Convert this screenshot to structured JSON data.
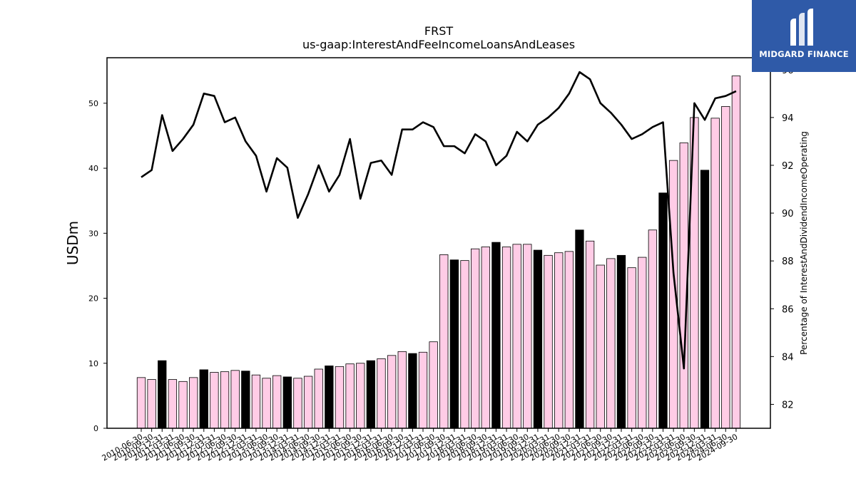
{
  "logo": {
    "name": "MIDGARD FINANCE"
  },
  "colors": {
    "bar_pink": "#ffcce6",
    "bar_black": "#000000",
    "line": "#000000",
    "logo_bg": "#2f5aa8"
  },
  "chart_data": {
    "type": "bar+line",
    "title": "FRST",
    "subtitle": "us-gaap:InterestAndFeeIncomeLoansAndLeases",
    "ylabel": "USDm",
    "y2label": "Percentage of InterestAndDividendIncomeOperating",
    "ylim": [
      0,
      57
    ],
    "y2lim": [
      81.0,
      96.5
    ],
    "yticks": [
      0,
      10,
      20,
      30,
      40,
      50
    ],
    "y2ticks": [
      82,
      84,
      86,
      88,
      90,
      92,
      94,
      96
    ],
    "categories": [
      "2010-06-30",
      "2010-09-30",
      "2010-12-31",
      "2011-03-31",
      "2011-06-30",
      "2011-09-30",
      "2011-12-31",
      "2012-03-31",
      "2012-06-30",
      "2012-09-30",
      "2012-12-31",
      "2013-03-31",
      "2013-06-30",
      "2013-09-30",
      "2013-12-31",
      "2014-03-31",
      "2014-06-30",
      "2014-09-30",
      "2014-12-31",
      "2015-03-31",
      "2015-06-30",
      "2015-09-30",
      "2015-12-31",
      "2016-03-31",
      "2016-06-30",
      "2016-09-30",
      "2016-12-31",
      "2017-03-31",
      "2017-06-30",
      "2017-09-30",
      "2017-12-31",
      "2018-03-31",
      "2018-06-30",
      "2018-09-30",
      "2018-12-31",
      "2019-03-31",
      "2019-06-30",
      "2019-09-30",
      "2019-12-31",
      "2020-03-31",
      "2020-06-30",
      "2020-09-30",
      "2020-12-31",
      "2021-03-31",
      "2021-06-30",
      "2021-09-30",
      "2021-12-31",
      "2022-03-31",
      "2022-06-30",
      "2022-09-30",
      "2022-12-31",
      "2023-03-31",
      "2023-06-30",
      "2023-09-30",
      "2023-12-31",
      "2024-03-31",
      "2024-06-30",
      "2024-09-30"
    ],
    "series": [
      {
        "kind": "bar",
        "values": [
          7.8,
          7.5,
          10.4,
          7.5,
          7.2,
          7.8,
          9.0,
          8.6,
          8.7,
          8.9,
          8.8,
          8.2,
          7.7,
          8.1,
          7.9,
          7.7,
          8.0,
          9.1,
          9.6,
          9.5,
          9.9,
          10.0,
          10.4,
          10.7,
          11.2,
          11.8,
          11.5,
          11.7,
          13.3,
          26.7,
          25.9,
          25.8,
          27.6,
          27.9,
          28.6,
          27.9,
          28.3,
          28.3,
          27.4,
          26.6,
          27.0,
          27.2,
          30.5,
          28.8,
          25.1,
          26.1,
          26.6,
          24.7,
          26.3,
          30.5,
          36.2,
          41.2,
          43.9,
          47.8,
          39.7,
          47.7,
          49.5,
          54.2
        ],
        "highlight": [
          false,
          false,
          true,
          false,
          false,
          false,
          true,
          false,
          false,
          false,
          true,
          false,
          false,
          false,
          true,
          false,
          false,
          false,
          true,
          false,
          false,
          false,
          true,
          false,
          false,
          false,
          true,
          false,
          false,
          false,
          true,
          false,
          false,
          false,
          true,
          false,
          false,
          false,
          true,
          false,
          false,
          false,
          true,
          false,
          false,
          false,
          true,
          false,
          false,
          false,
          true,
          false,
          false,
          false,
          true,
          false,
          false,
          false
        ]
      },
      {
        "kind": "line",
        "axis": "right",
        "values": [
          91.5,
          91.8,
          94.1,
          92.6,
          93.1,
          93.7,
          95.0,
          94.9,
          93.8,
          94.0,
          93.0,
          92.4,
          90.9,
          92.3,
          91.9,
          89.8,
          90.8,
          92.0,
          90.9,
          91.6,
          93.1,
          90.6,
          92.1,
          92.2,
          91.6,
          93.5,
          93.5,
          93.8,
          93.6,
          92.8,
          92.8,
          92.5,
          93.3,
          93.0,
          92.0,
          92.4,
          93.4,
          93.0,
          93.7,
          94.0,
          94.4,
          95.0,
          95.9,
          95.6,
          94.6,
          94.2,
          93.7,
          93.1,
          93.3,
          93.6,
          93.8,
          87.5,
          83.5,
          94.6,
          93.9,
          94.8,
          94.9,
          95.1
        ]
      }
    ]
  }
}
